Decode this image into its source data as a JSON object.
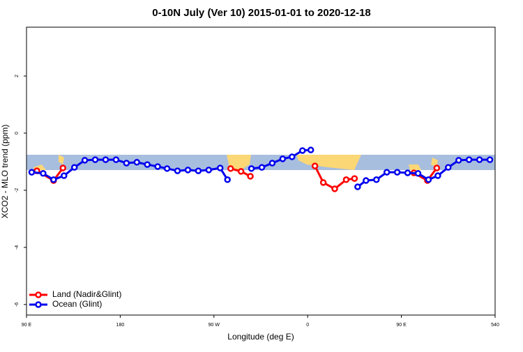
{
  "chart_data": {
    "type": "line",
    "title": "0-10N July (Ver 10)   2015-01-01 to 2020-12-18",
    "x_label": "Longitude (deg E)",
    "y_label": "XCO2 - MLO trend (ppm)",
    "xlim": [
      90,
      540
    ],
    "ylim": [
      -6.37,
      3.71
    ],
    "xticks": [
      {
        "value": 90,
        "label": "90 E"
      },
      180,
      {
        "value": 270,
        "label": "90 W"
      },
      {
        "value": 360,
        "label": "0"
      },
      {
        "value": 450,
        "label": "90 E"
      },
      540
    ],
    "yticks": [
      -6,
      -4,
      -2,
      0,
      2
    ],
    "legend": "bottom-left",
    "series": [
      {
        "name": "Land (Nadir&Glint)",
        "color": "#ff0000",
        "x": [
          100,
          116,
          125,
          200,
          286,
          296,
          305,
          330,
          367,
          375,
          386,
          397,
          405,
          430,
          462,
          475,
          484
        ],
        "values": [
          -1.32,
          -1.66,
          -1.22,
          null,
          -1.24,
          -1.34,
          -1.51,
          null,
          -1.15,
          -1.73,
          -1.95,
          -1.63,
          -1.59,
          null,
          -1.39,
          -1.66,
          -1.22
        ]
      },
      {
        "name": "Ocean (Glint)",
        "color": "#0000ee",
        "x": [
          95,
          106,
          116,
          126,
          136,
          146,
          156,
          166,
          176,
          186,
          196,
          206,
          216,
          225,
          235,
          245,
          255,
          265,
          276,
          283,
          295,
          306,
          316,
          326,
          336,
          345,
          355,
          363,
          390,
          408,
          416,
          426,
          436,
          446,
          456,
          466,
          476,
          485,
          495,
          505,
          515,
          525,
          535
        ],
        "values": [
          -1.37,
          -1.41,
          -1.63,
          -1.49,
          -1.2,
          -0.95,
          -0.93,
          -0.93,
          -0.93,
          -1.05,
          -1.02,
          -1.1,
          -1.17,
          -1.24,
          -1.32,
          -1.29,
          -1.32,
          -1.29,
          -1.22,
          -1.63,
          null,
          -1.24,
          -1.2,
          -1.05,
          -0.9,
          -0.83,
          -0.61,
          -0.59,
          null,
          -1.88,
          -1.66,
          -1.63,
          -1.37,
          -1.37,
          -1.39,
          -1.41,
          -1.63,
          -1.49,
          -1.2,
          -0.95,
          -0.93,
          -0.93,
          -0.93
        ]
      }
    ]
  }
}
